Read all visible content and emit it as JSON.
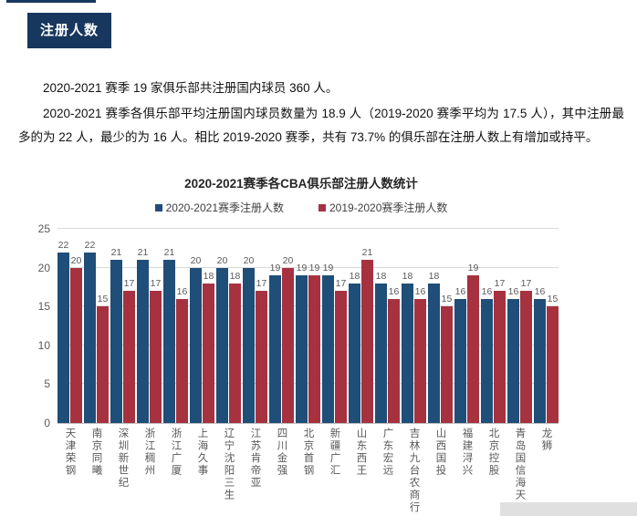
{
  "page": {
    "section_badge": "注册人数",
    "paragraphs": [
      "2020-2021 赛季 19 家俱乐部共注册国内球员 360 人。",
      "2020-2021 赛季各俱乐部平均注册国内球员数量为 18.9 人（2019-2020 赛季平均为 17.5 人），其中注册最多的为 22 人，最少的为 16 人。相比 2019-2020 赛季，共有 73.7% 的俱乐部在注册人数上有增加或持平。"
    ]
  },
  "chart_data": {
    "type": "bar",
    "title": "2020-2021赛季各CBA俱乐部注册人数统计",
    "categories": [
      "天津荣钢",
      "南京同曦",
      "深圳新世纪",
      "浙江稠州",
      "浙江广厦",
      "上海久事",
      "辽宁沈阳三生",
      "江苏肯帝亚",
      "四川金强",
      "北京首钢",
      "新疆广汇",
      "山东西王",
      "广东宏远",
      "吉林九台农商行",
      "山西国投",
      "福建浔兴",
      "北京控股",
      "青岛国信海天",
      "龙狮"
    ],
    "series": [
      {
        "name": "2020-2021赛季注册人数",
        "color": "#1F4E79",
        "values": [
          22,
          22,
          21,
          21,
          21,
          20,
          20,
          20,
          19,
          19,
          19,
          18,
          18,
          18,
          18,
          16,
          16,
          16,
          16
        ]
      },
      {
        "name": "2019-2020赛季注册人数",
        "color": "#A63240",
        "values": [
          20,
          15,
          17,
          17,
          16,
          18,
          18,
          17,
          20,
          19,
          17,
          21,
          16,
          16,
          15,
          19,
          17,
          17,
          15
        ]
      }
    ],
    "xlabel": "",
    "ylabel": "",
    "ylim": [
      0,
      25
    ],
    "yticks": [
      0,
      5,
      10,
      15,
      20,
      25
    ],
    "grid": true,
    "legend_position": "top",
    "value_labels": true,
    "colors": {
      "label_gray": "#595959",
      "gridline": "#D9D9D9",
      "axis": "#BFBFBF",
      "badge_navy": "#17375E"
    }
  }
}
